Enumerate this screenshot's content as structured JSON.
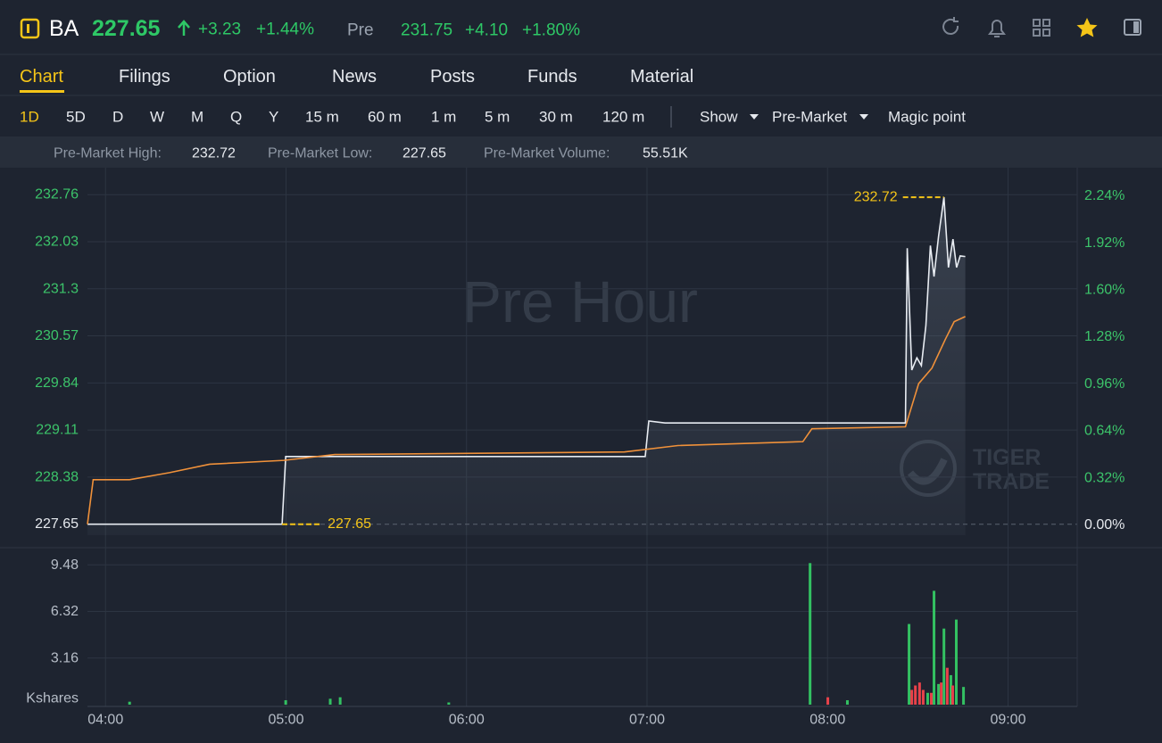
{
  "header": {
    "symbol": "BA",
    "price": "227.65",
    "change": "+3.23",
    "change_pct": "+1.44%",
    "session": "Pre",
    "session_price": "231.75",
    "session_change": "+4.10",
    "session_change_pct": "+1.80%"
  },
  "tabs": [
    "Chart",
    "Filings",
    "Option",
    "News",
    "Posts",
    "Funds",
    "Material"
  ],
  "periods": [
    "1D",
    "5D",
    "D",
    "W",
    "M",
    "Q",
    "Y",
    "15 m",
    "60 m",
    "1 m",
    "5 m",
    "30 m",
    "120 m"
  ],
  "menus": [
    "Show",
    "Pre-Market",
    "Magic point"
  ],
  "stats": [
    {
      "label": "Pre-Market High:",
      "value": "232.72"
    },
    {
      "label": "Pre-Market Low:",
      "value": "227.65"
    },
    {
      "label": "Pre-Market Volume:",
      "value": "55.51K"
    }
  ],
  "chart_data": [
    {
      "type": "line",
      "watermark": "Pre Hour",
      "logo_text": [
        "TIGER",
        "TRADE"
      ],
      "xlim": [
        234,
        563
      ],
      "xticks": [
        {
          "value": 240,
          "label": "04:00"
        },
        {
          "value": 300,
          "label": "05:00"
        },
        {
          "value": 360,
          "label": "06:00"
        },
        {
          "value": 420,
          "label": "07:00"
        },
        {
          "value": 480,
          "label": "08:00"
        },
        {
          "value": 540,
          "label": "09:00"
        }
      ],
      "ylim": [
        227.48,
        233.15
      ],
      "yticks": [
        227.65,
        228.38,
        229.11,
        229.84,
        230.57,
        231.3,
        232.03,
        232.76
      ],
      "y2lim": [
        -0.07,
        2.42
      ],
      "y2ticks": [
        {
          "value": 0,
          "label": "0.00%"
        },
        {
          "value": 0.32,
          "label": "0.32%"
        },
        {
          "value": 0.64,
          "label": "0.64%"
        },
        {
          "value": 0.96,
          "label": "0.96%"
        },
        {
          "value": 1.28,
          "label": "1.28%"
        },
        {
          "value": 1.6,
          "label": "1.60%"
        },
        {
          "value": 1.92,
          "label": "1.92%"
        },
        {
          "value": 2.24,
          "label": "2.24%"
        }
      ],
      "grid": true,
      "annotations": [
        "232.72",
        "227.65"
      ],
      "series": [
        {
          "color": "#e8ecf2",
          "x": [
            234,
            298.7,
            299.9,
            419.4,
            420.6,
            426,
            505.9,
            506.5,
            508,
            509.7,
            511.2,
            512.7,
            514.2,
            515.4,
            516.9,
            518.7,
            520.2,
            521.7,
            522.9,
            524.1,
            525.8
          ],
          "values": [
            227.65,
            227.65,
            228.7,
            228.7,
            229.25,
            229.22,
            229.22,
            231.93,
            230.04,
            230.23,
            230.11,
            230.73,
            231.97,
            231.49,
            232.11,
            232.72,
            231.63,
            232.07,
            231.63,
            231.81,
            231.8
          ]
        },
        {
          "color": "#f0913a",
          "x": [
            234,
            235.9,
            248,
            261.3,
            274.6,
            299.3,
            316.2,
            412.5,
            430.3,
            471.8,
            474.8,
            505.9,
            510.3,
            514.7,
            519.2,
            522.1,
            525.8
          ],
          "values": [
            227.65,
            228.34,
            228.34,
            228.45,
            228.58,
            228.64,
            228.73,
            228.77,
            228.87,
            228.93,
            229.13,
            229.16,
            229.83,
            230.07,
            230.52,
            230.79,
            230.87
          ]
        }
      ]
    },
    {
      "type": "bar",
      "ylabel": "Kshares",
      "ylim": [
        0,
        9.8
      ],
      "yticks": [
        3.16,
        6.32,
        9.48
      ],
      "series": [
        {
          "color": "#33c162",
          "x": [
            248,
            299.9,
            314.7,
            318,
            354.1,
            474.2,
            486.6,
            507.1,
            513.3,
            515.4,
            516.9,
            518.7,
            521,
            522.8,
            525.2
          ],
          "values": [
            0.2,
            0.3,
            0.4,
            0.5,
            0.15,
            9.6,
            0.3,
            5.47,
            0.8,
            7.72,
            1.4,
            5.16,
            2.0,
            5.77,
            1.2
          ]
        },
        {
          "color": "#e8424a",
          "x": [
            480.1,
            508,
            509.2,
            510.6,
            511.8,
            514.5,
            517.8,
            519.8,
            521.6
          ],
          "values": [
            0.5,
            1.0,
            1.3,
            1.5,
            1.0,
            0.8,
            1.5,
            2.5,
            1.3
          ]
        }
      ]
    }
  ]
}
